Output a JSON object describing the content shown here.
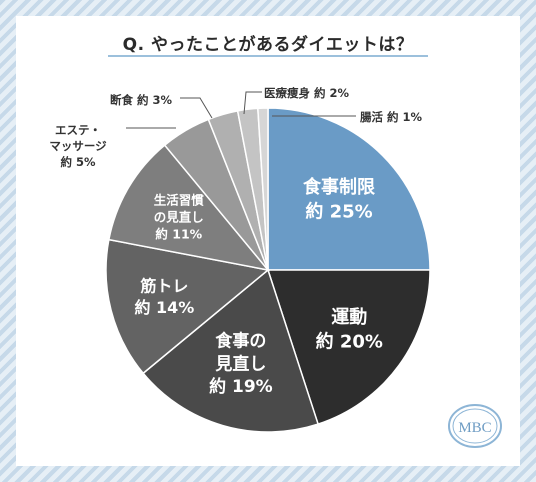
{
  "title": "Q. やったことがあるダイエットは？",
  "logo_text": "MBC",
  "chart_data": {
    "type": "pie",
    "title": "Q. やったことがあるダイエットは？",
    "unit": "%",
    "start_angle": "12 o'clock",
    "direction": "clockwise",
    "slices": [
      {
        "label": "食事制限",
        "value": 25,
        "value_text": "約 25%",
        "color": "#6a9bc6",
        "text_color": "#ffffff"
      },
      {
        "label": "運動",
        "value": 20,
        "value_text": "約 20%",
        "color": "#2d2d2d",
        "text_color": "#ffffff"
      },
      {
        "label": "食事の見直し",
        "value": 19,
        "value_text": "約 19%",
        "color": "#4a4a4a",
        "text_color": "#ffffff"
      },
      {
        "label": "筋トレ",
        "value": 14,
        "value_text": "約 14%",
        "color": "#636363",
        "text_color": "#ffffff"
      },
      {
        "label": "生活習慣の見直し",
        "value": 11,
        "value_text": "約 11%",
        "color": "#7e7e7e",
        "text_color": "#ffffff"
      },
      {
        "label": "エステ・マッサージ",
        "value": 5,
        "value_text": "約 5%",
        "color": "#999999",
        "text_color": "#333333"
      },
      {
        "label": "断食",
        "value": 3,
        "value_text": "約 3%",
        "color": "#b0b0b0",
        "text_color": "#333333"
      },
      {
        "label": "医療痩身",
        "value": 2,
        "value_text": "約 2%",
        "color": "#c4c4c4",
        "text_color": "#333333"
      },
      {
        "label": "腸活",
        "value": 1,
        "value_text": "約 1%",
        "color": "#d6d6d6",
        "text_color": "#333333"
      }
    ]
  }
}
